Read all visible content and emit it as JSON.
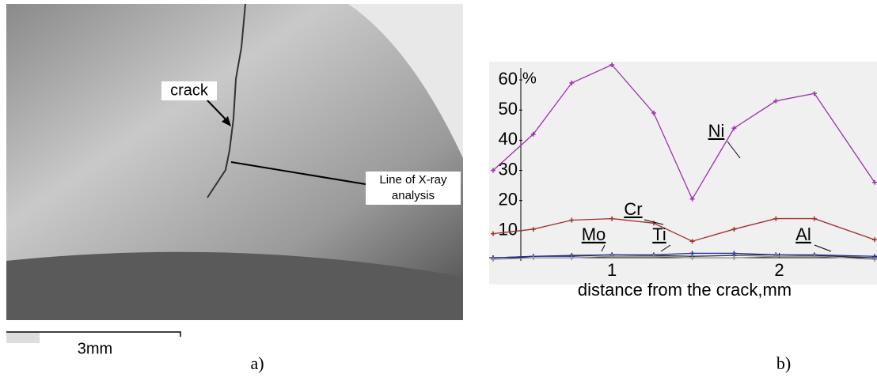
{
  "image_panel": {
    "crack_label": "crack",
    "line_label": [
      "Line of X-ray",
      "analysis"
    ],
    "scale_label": "3mm",
    "panel_label": "a)"
  },
  "chart_data": {
    "type": "line",
    "panel_label": "b)",
    "y_label": "%",
    "x_label": "distance from the crack,mm",
    "x": [
      0.29,
      0.53,
      0.76,
      1.0,
      1.25,
      1.48,
      1.73,
      1.98,
      2.21,
      2.57
    ],
    "xlim": [
      0.29,
      2.57
    ],
    "xticks": [
      1,
      2
    ],
    "ylim": [
      0,
      65
    ],
    "yticks": [
      10,
      20,
      30,
      40,
      50,
      60
    ],
    "series": [
      {
        "name": "Ni",
        "color": "#a030b0",
        "values": [
          30,
          42,
          59,
          65,
          49,
          20.5,
          44,
          53,
          55.5,
          26
        ]
      },
      {
        "name": "Cr",
        "color": "#a03030",
        "values": [
          9,
          10.5,
          13.5,
          14,
          12.5,
          6.5,
          10.5,
          14,
          14,
          7
        ]
      },
      {
        "name": "Mo",
        "color": "#303030",
        "values": [
          1,
          1.5,
          1.8,
          2,
          1.8,
          1.5,
          1.8,
          2,
          1.8,
          1
        ]
      },
      {
        "name": "Ti",
        "color": "#2030a0",
        "values": [
          1,
          1.5,
          1.5,
          2,
          2,
          2.5,
          2.5,
          2,
          2,
          1.5
        ]
      },
      {
        "name": "Al",
        "color": "#909090",
        "values": [
          0.5,
          1,
          1,
          1.5,
          1.5,
          1,
          1,
          1.5,
          1.5,
          0.5
        ]
      }
    ]
  }
}
